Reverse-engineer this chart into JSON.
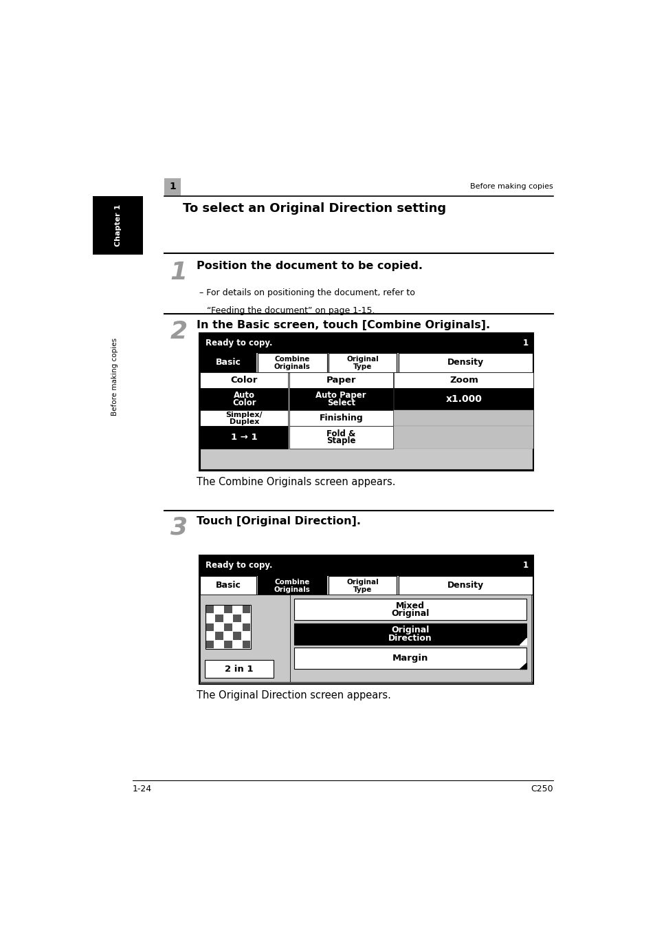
{
  "bg_color": "#ffffff",
  "page_width": 9.54,
  "page_height": 13.5,
  "top_label": "Before making copies",
  "chapter_tab_text": "Chapter 1",
  "sidebar_text": "Before making copies",
  "page_footer_left": "1-24",
  "page_footer_right": "C250",
  "section_title": "To select an Original Direction setting",
  "step1_text": "Position the document to be copied.",
  "step1_sub1": "– For details on positioning the document, refer to",
  "step1_sub2": "“Feeding the document” on page 1-15.",
  "step2_text": "In the Basic screen, touch [Combine Originals].",
  "step2_caption": "The Combine Originals screen appears.",
  "step3_text": "Touch [Original Direction].",
  "step3_caption": "The Original Direction screen appears.",
  "lm": 1.55,
  "rm": 8.85,
  "content_lm": 2.15
}
